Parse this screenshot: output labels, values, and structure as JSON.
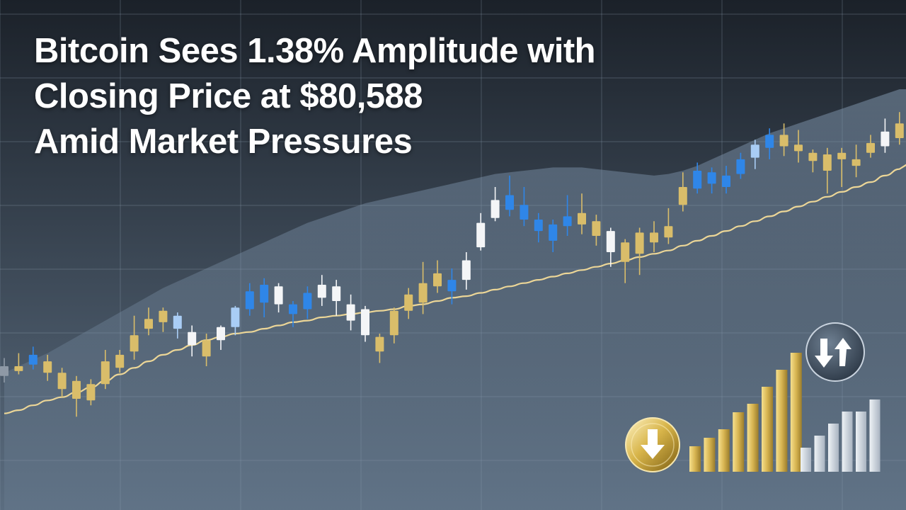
{
  "headline": {
    "line1": "Bitcoin Sees 1.38% Amplitude with",
    "line2": "Closing Price at $80,588",
    "line3": "Amid Market Pressures"
  },
  "colors": {
    "background_top": "#1b2129",
    "background_bottom": "#5b6d80",
    "grid": "#8fa0b3",
    "area_fill": "#7d93aa",
    "candle_blue": "#2f86e8",
    "candle_light_blue": "#a9cdf5",
    "candle_white": "#f4f5f7",
    "candle_gold": "#d9bd6a",
    "candle_gray": "#8e99a6",
    "moving_average": "#ecd697",
    "icon_gold": "#d8b54a",
    "mini_bar_silver": "#cdd5de"
  },
  "icons": {
    "down_arrow": "down-arrow-icon",
    "swap_arrows": "swap-arrows-icon"
  },
  "chart_data": {
    "type": "candlestick",
    "x": [
      1,
      2,
      3,
      4,
      5,
      6,
      7,
      8,
      9,
      10,
      11,
      12,
      13,
      14,
      15,
      16,
      17,
      18,
      19,
      20,
      21,
      22,
      23,
      24,
      25,
      26,
      27,
      28,
      29,
      30,
      31,
      32,
      33,
      34,
      35,
      36,
      37,
      38,
      39,
      40,
      41,
      42,
      43,
      44,
      45,
      46,
      47,
      48,
      49,
      50,
      51,
      52,
      53,
      54,
      55,
      56,
      57,
      58,
      59,
      60,
      61,
      62,
      63
    ],
    "candles": [
      {
        "o": 4,
        "c": 10,
        "h": 15,
        "l": 0,
        "color": "gray"
      },
      {
        "o": 10,
        "c": 7,
        "h": 18,
        "l": 5,
        "color": "gold"
      },
      {
        "o": 11,
        "c": 17,
        "h": 22,
        "l": 8,
        "color": "blue"
      },
      {
        "o": 13,
        "c": 6,
        "h": 17,
        "l": 1,
        "color": "gold"
      },
      {
        "o": 6,
        "c": -4,
        "h": 9,
        "l": -9,
        "color": "gold"
      },
      {
        "o": 1,
        "c": -10,
        "h": 4,
        "l": -21,
        "color": "gold"
      },
      {
        "o": -11,
        "c": -1,
        "h": 2,
        "l": -14,
        "color": "gold"
      },
      {
        "o": -1,
        "c": 13,
        "h": 20,
        "l": -4,
        "color": "gold"
      },
      {
        "o": 9,
        "c": 17,
        "h": 20,
        "l": 6,
        "color": "gold"
      },
      {
        "o": 19,
        "c": 29,
        "h": 41,
        "l": 14,
        "color": "gold"
      },
      {
        "o": 33,
        "c": 39,
        "h": 46,
        "l": 29,
        "color": "gold"
      },
      {
        "o": 37,
        "c": 44,
        "h": 46,
        "l": 31,
        "color": "gold"
      },
      {
        "o": 41,
        "c": 33,
        "h": 43,
        "l": 27,
        "color": "light_blue"
      },
      {
        "o": 31,
        "c": 23,
        "h": 35,
        "l": 16,
        "color": "white"
      },
      {
        "o": 16,
        "c": 26,
        "h": 30,
        "l": 10,
        "color": "gold"
      },
      {
        "o": 26,
        "c": 34,
        "h": 35,
        "l": 20,
        "color": "white"
      },
      {
        "o": 34,
        "c": 46,
        "h": 47,
        "l": 29,
        "color": "light_blue"
      },
      {
        "o": 45,
        "c": 56,
        "h": 61,
        "l": 41,
        "color": "blue"
      },
      {
        "o": 49,
        "c": 60,
        "h": 64,
        "l": 40,
        "color": "blue"
      },
      {
        "o": 59,
        "c": 48,
        "h": 61,
        "l": 43,
        "color": "white"
      },
      {
        "o": 48,
        "c": 42,
        "h": 50,
        "l": 34,
        "color": "blue"
      },
      {
        "o": 45,
        "c": 55,
        "h": 59,
        "l": 39,
        "color": "blue"
      },
      {
        "o": 60,
        "c": 52,
        "h": 66,
        "l": 47,
        "color": "white"
      },
      {
        "o": 59,
        "c": 50,
        "h": 63,
        "l": 41,
        "color": "white"
      },
      {
        "o": 48,
        "c": 38,
        "h": 54,
        "l": 32,
        "color": "white"
      },
      {
        "o": 45,
        "c": 29,
        "h": 47,
        "l": 25,
        "color": "white"
      },
      {
        "o": 19,
        "c": 28,
        "h": 30,
        "l": 12,
        "color": "gold"
      },
      {
        "o": 29,
        "c": 44,
        "h": 46,
        "l": 24,
        "color": "gold"
      },
      {
        "o": 44,
        "c": 54,
        "h": 58,
        "l": 39,
        "color": "gold"
      },
      {
        "o": 49,
        "c": 61,
        "h": 74,
        "l": 42,
        "color": "gold"
      },
      {
        "o": 59,
        "c": 67,
        "h": 75,
        "l": 55,
        "color": "gold"
      },
      {
        "o": 63,
        "c": 56,
        "h": 70,
        "l": 48,
        "color": "blue"
      },
      {
        "o": 63,
        "c": 75,
        "h": 80,
        "l": 57,
        "color": "white"
      },
      {
        "o": 83,
        "c": 98,
        "h": 104,
        "l": 81,
        "color": "white"
      },
      {
        "o": 101,
        "c": 112,
        "h": 120,
        "l": 99,
        "color": "white"
      },
      {
        "o": 115,
        "c": 106,
        "h": 127,
        "l": 102,
        "color": "blue"
      },
      {
        "o": 109,
        "c": 100,
        "h": 120,
        "l": 96,
        "color": "blue"
      },
      {
        "o": 100,
        "c": 93,
        "h": 104,
        "l": 86,
        "color": "blue"
      },
      {
        "o": 97,
        "c": 87,
        "h": 100,
        "l": 80,
        "color": "blue"
      },
      {
        "o": 102,
        "c": 96,
        "h": 115,
        "l": 90,
        "color": "blue"
      },
      {
        "o": 104,
        "c": 97,
        "h": 116,
        "l": 91,
        "color": "gold"
      },
      {
        "o": 99,
        "c": 90,
        "h": 103,
        "l": 84,
        "color": "gold"
      },
      {
        "o": 93,
        "c": 80,
        "h": 95,
        "l": 71,
        "color": "white"
      },
      {
        "o": 74,
        "c": 86,
        "h": 88,
        "l": 61,
        "color": "gold"
      },
      {
        "o": 79,
        "c": 92,
        "h": 95,
        "l": 66,
        "color": "gold"
      },
      {
        "o": 86,
        "c": 92,
        "h": 99,
        "l": 80,
        "color": "gold"
      },
      {
        "o": 89,
        "c": 96,
        "h": 107,
        "l": 85,
        "color": "gold"
      },
      {
        "o": 109,
        "c": 120,
        "h": 129,
        "l": 105,
        "color": "gold"
      },
      {
        "o": 119,
        "c": 130,
        "h": 135,
        "l": 116,
        "color": "blue"
      },
      {
        "o": 122,
        "c": 129,
        "h": 132,
        "l": 116,
        "color": "blue"
      },
      {
        "o": 120,
        "c": 127,
        "h": 133,
        "l": 116,
        "color": "blue"
      },
      {
        "o": 128,
        "c": 137,
        "h": 141,
        "l": 125,
        "color": "blue"
      },
      {
        "o": 138,
        "c": 146,
        "h": 149,
        "l": 131,
        "color": "light_blue"
      },
      {
        "o": 144,
        "c": 152,
        "h": 156,
        "l": 137,
        "color": "blue"
      },
      {
        "o": 152,
        "c": 145,
        "h": 159,
        "l": 139,
        "color": "gold"
      },
      {
        "o": 146,
        "c": 142,
        "h": 155,
        "l": 135,
        "color": "gold"
      },
      {
        "o": 141,
        "c": 136,
        "h": 143,
        "l": 129,
        "color": "gold"
      },
      {
        "o": 140,
        "c": 130,
        "h": 144,
        "l": 116,
        "color": "gold"
      },
      {
        "o": 137,
        "c": 141,
        "h": 144,
        "l": 120,
        "color": "gold"
      },
      {
        "o": 137,
        "c": 133,
        "h": 146,
        "l": 126,
        "color": "gold"
      },
      {
        "o": 141,
        "c": 147,
        "h": 152,
        "l": 138,
        "color": "gold"
      },
      {
        "o": 145,
        "c": 154,
        "h": 162,
        "l": 141,
        "color": "white"
      },
      {
        "o": 159,
        "c": 150,
        "h": 166,
        "l": 146,
        "color": "gold"
      }
    ],
    "moving_average": [
      -19,
      -17,
      -14,
      -11,
      -9,
      -6,
      -3,
      1,
      5,
      9,
      13,
      17,
      20,
      23,
      26,
      28,
      30,
      31,
      33,
      35,
      37,
      38,
      40,
      41,
      42,
      43,
      44,
      45,
      47,
      48,
      50,
      52,
      53,
      55,
      57,
      59,
      61,
      63,
      65,
      67,
      69,
      71,
      73,
      75,
      77,
      79,
      81,
      84,
      87,
      90,
      93,
      96,
      99,
      102,
      105,
      108,
      111,
      114,
      117,
      120,
      123,
      127,
      131
    ],
    "background_area": [
      6,
      10,
      14,
      18,
      23,
      28,
      33,
      38,
      43,
      48,
      53,
      58,
      62,
      66,
      70,
      74,
      78,
      82,
      86,
      90,
      94,
      98,
      101,
      104,
      107,
      110,
      112,
      114,
      116,
      118,
      120,
      122,
      124,
      126,
      128,
      129,
      130,
      131,
      132,
      132,
      132,
      131,
      130,
      129,
      128,
      127,
      128,
      130,
      133,
      137,
      141,
      145,
      149,
      153,
      156,
      159,
      162,
      165,
      168,
      171,
      174,
      177,
      180
    ],
    "volume_gold": [
      3,
      4,
      5,
      7,
      8,
      10,
      12,
      14
    ],
    "volume_silver": [
      2,
      3,
      4,
      5,
      5,
      6
    ],
    "title": "",
    "xlabel": "",
    "ylabel": "",
    "ylim": [
      -40,
      200
    ],
    "grid": true,
    "legend": "none"
  }
}
